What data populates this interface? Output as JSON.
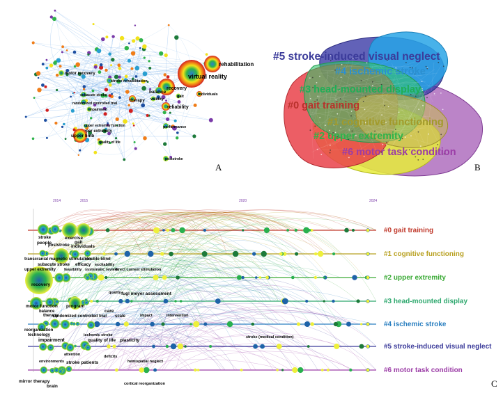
{
  "panel_a": {
    "letter": "A",
    "keywords": [
      "rehabilitation",
      "virtual reality",
      "motor recovery",
      "stroke rehabilitation",
      "recovery",
      "balance",
      "gait",
      "individuals",
      "subacute stroke",
      "therapy",
      "validity",
      "randomized controlled trial",
      "reliability",
      "impairment",
      "upper extremity function",
      "upper extremity",
      "upper limb",
      "performance",
      "quality of life",
      "poststroke"
    ]
  },
  "panel_b": {
    "letter": "B",
    "clusters": [
      {
        "label": "#5 stroke-induced visual neglect",
        "color": "#3b3b9a"
      },
      {
        "label": "#4 ischemic stroke",
        "color": "#2b8fd0"
      },
      {
        "label": "#3 head-mounted display",
        "color": "#1fae57"
      },
      {
        "label": "#0 gait training",
        "color": "#b8302b"
      },
      {
        "label": "#1 cognitive functioning",
        "color": "#a29a2a"
      },
      {
        "label": "#2 upper extremity",
        "color": "#2fb34a"
      },
      {
        "label": "#6 motor task condition",
        "color": "#9b3ca6"
      }
    ]
  },
  "panel_c": {
    "letter": "C",
    "years": [
      "2014",
      "2015",
      "2020",
      "2024"
    ],
    "lanes": [
      {
        "label": "#0 gait training",
        "color": "#c0392b"
      },
      {
        "label": "#1 cognitive functioning",
        "color": "#b8a020"
      },
      {
        "label": "#2 upper extremity",
        "color": "#3aaa35"
      },
      {
        "label": "#3 head-mounted display",
        "color": "#2ea86e"
      },
      {
        "label": "#4 ischemic stroke",
        "color": "#2a7fc0"
      },
      {
        "label": "#5 stroke-induced visual neglect",
        "color": "#3b3b9a"
      },
      {
        "label": "#6 motor task condition",
        "color": "#9b3ca6"
      }
    ],
    "keywords": {
      "stroke": "stroke",
      "people": "people",
      "poststroke": "poststroke",
      "exercise": "exercise",
      "gait": "gait",
      "individuals": "individuals",
      "tms": "transcranial magnetic stimulation",
      "subacute": "subacute stroke",
      "double": "double blind",
      "ue": "upper extremity",
      "feas": "feasibility",
      "eff": "efficacy",
      "sr": "systematic review",
      "exc": "excitability",
      "dcs": "direct current stimulation",
      "recovery": "recovery",
      "qual": "quality",
      "fma": "fugl meyer assessment",
      "mf": "motor function",
      "bal": "balance",
      "prog": "program",
      "ther": "therapy",
      "rct": "randomized controlled trial",
      "care": "care",
      "scale": "scale",
      "impact": "impact",
      "interv": "intervention",
      "reorg": "reorganization",
      "tech": "technology",
      "imp": "impairment",
      "isch": "ischemic stroke",
      "ql": "quality of life",
      "plast": "plasticity",
      "smc": "stroke (medical condition)",
      "env": "environments",
      "att": "attention",
      "def": "deficits",
      "sp": "stroke patients",
      "hn": "hemispatial neglect",
      "mt": "mirror therapy",
      "brain": "brain",
      "cr": "cortical reorganization"
    }
  }
}
